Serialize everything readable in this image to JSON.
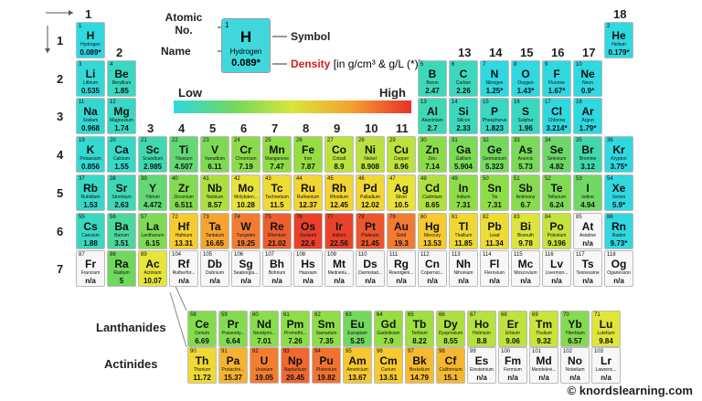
{
  "header": {
    "group_labels": [
      1,
      2,
      3,
      4,
      5,
      6,
      7,
      8,
      9,
      10,
      11,
      12,
      13,
      14,
      15,
      16,
      17,
      18
    ],
    "period_labels": [
      1,
      2,
      3,
      4,
      5,
      6,
      7
    ]
  },
  "legend": {
    "atomic_no": "Atomic No.",
    "name": "Name",
    "symbol": "Symbol",
    "density": "Density",
    "density_units": "[in g/cm³ & g/L (*)]",
    "low": "Low",
    "high": "High",
    "sample": {
      "number": 1,
      "symbol": "H",
      "name": "Hydrogen",
      "density": "0.089*"
    }
  },
  "series_labels": {
    "lanthanides": "Lanthanides",
    "actinides": "Actinides"
  },
  "footer": "© knordslearning.com",
  "elements": [
    {
      "number": 1,
      "symbol": "H",
      "name": "Hydrogen",
      "density": "0.089*"
    },
    {
      "number": 2,
      "symbol": "He",
      "name": "Helium",
      "density": "0.179*"
    },
    {
      "number": 3,
      "symbol": "Li",
      "name": "Lithium",
      "density": "0.535"
    },
    {
      "number": 4,
      "symbol": "Be",
      "name": "Beryllium",
      "density": "1.85"
    },
    {
      "number": 5,
      "symbol": "B",
      "name": "Boron",
      "density": "2.47"
    },
    {
      "number": 6,
      "symbol": "C",
      "name": "Carbon",
      "density": "2.26"
    },
    {
      "number": 7,
      "symbol": "N",
      "name": "Nitrogen",
      "density": "1.25*"
    },
    {
      "number": 8,
      "symbol": "O",
      "name": "Oxygen",
      "density": "1.43*"
    },
    {
      "number": 9,
      "symbol": "F",
      "name": "Fluorine",
      "density": "1.67*"
    },
    {
      "number": 10,
      "symbol": "Ne",
      "name": "Neon",
      "density": "0.9*"
    },
    {
      "number": 11,
      "symbol": "Na",
      "name": "Sodium",
      "density": "0.968"
    },
    {
      "number": 12,
      "symbol": "Mg",
      "name": "Magnesium",
      "density": "1.74"
    },
    {
      "number": 13,
      "symbol": "Al",
      "name": "Aluminium",
      "density": "2.7"
    },
    {
      "number": 14,
      "symbol": "Si",
      "name": "Silicon",
      "density": "2.33"
    },
    {
      "number": 15,
      "symbol": "P",
      "name": "Phosphorus",
      "density": "1.823"
    },
    {
      "number": 16,
      "symbol": "S",
      "name": "Sulphur",
      "density": "1.96"
    },
    {
      "number": 17,
      "symbol": "Cl",
      "name": "Chlorine",
      "density": "3.214*"
    },
    {
      "number": 18,
      "symbol": "Ar",
      "name": "Argon",
      "density": "1.79*"
    },
    {
      "number": 19,
      "symbol": "K",
      "name": "Potassium",
      "density": "0.856"
    },
    {
      "number": 20,
      "symbol": "Ca",
      "name": "Calcium",
      "density": "1.55"
    },
    {
      "number": 21,
      "symbol": "Sc",
      "name": "Scandium",
      "density": "2.985"
    },
    {
      "number": 22,
      "symbol": "Ti",
      "name": "Titanium",
      "density": "4.507"
    },
    {
      "number": 23,
      "symbol": "V",
      "name": "Vanadium",
      "density": "6.11"
    },
    {
      "number": 24,
      "symbol": "Cr",
      "name": "Chromium",
      "density": "7.19"
    },
    {
      "number": 25,
      "symbol": "Mn",
      "name": "Manganese",
      "density": "7.47"
    },
    {
      "number": 26,
      "symbol": "Fe",
      "name": "Iron",
      "density": "7.87"
    },
    {
      "number": 27,
      "symbol": "Co",
      "name": "Cobalt",
      "density": "8.9"
    },
    {
      "number": 28,
      "symbol": "Ni",
      "name": "Nickel",
      "density": "8.908"
    },
    {
      "number": 29,
      "symbol": "Cu",
      "name": "Copper",
      "density": "8.96"
    },
    {
      "number": 30,
      "symbol": "Zn",
      "name": "Zinc",
      "density": "7.14"
    },
    {
      "number": 31,
      "symbol": "Ga",
      "name": "Gallium",
      "density": "5.904"
    },
    {
      "number": 32,
      "symbol": "Ge",
      "name": "Germanium",
      "density": "5.323"
    },
    {
      "number": 33,
      "symbol": "As",
      "name": "Arsenic",
      "density": "5.73"
    },
    {
      "number": 34,
      "symbol": "Se",
      "name": "Selenium",
      "density": "4.82"
    },
    {
      "number": 35,
      "symbol": "Br",
      "name": "Bromine",
      "density": "3.12"
    },
    {
      "number": 36,
      "symbol": "Kr",
      "name": "Krypton",
      "density": "3.75*"
    },
    {
      "number": 37,
      "symbol": "Rb",
      "name": "Rubidium",
      "density": "1.53"
    },
    {
      "number": 38,
      "symbol": "Sr",
      "name": "Strontium",
      "density": "2.63"
    },
    {
      "number": 39,
      "symbol": "Y",
      "name": "Yttrium",
      "density": "4.472"
    },
    {
      "number": 40,
      "symbol": "Zr",
      "name": "Zirconium",
      "density": "6.511"
    },
    {
      "number": 41,
      "symbol": "Nb",
      "name": "Niobium",
      "density": "8.57"
    },
    {
      "number": 42,
      "symbol": "Mo",
      "name": "Molybden...",
      "density": "10.28"
    },
    {
      "number": 43,
      "symbol": "Tc",
      "name": "Technetium",
      "density": "11.5"
    },
    {
      "number": 44,
      "symbol": "Ru",
      "name": "Ruthenium",
      "density": "12.37"
    },
    {
      "number": 45,
      "symbol": "Rh",
      "name": "Rhodium",
      "density": "12.45"
    },
    {
      "number": 46,
      "symbol": "Pd",
      "name": "Palladium",
      "density": "12.02"
    },
    {
      "number": 47,
      "symbol": "Ag",
      "name": "Silver",
      "density": "10.5"
    },
    {
      "number": 48,
      "symbol": "Cd",
      "name": "Cadmium",
      "density": "8.65"
    },
    {
      "number": 49,
      "symbol": "In",
      "name": "Indium",
      "density": "7.31"
    },
    {
      "number": 50,
      "symbol": "Sn",
      "name": "Tin",
      "density": "7.31"
    },
    {
      "number": 51,
      "symbol": "Sb",
      "name": "Antimony",
      "density": "6.7"
    },
    {
      "number": 52,
      "symbol": "Te",
      "name": "Tellurium",
      "density": "6.24"
    },
    {
      "number": 53,
      "symbol": "I",
      "name": "Iodine",
      "density": "4.94"
    },
    {
      "number": 54,
      "symbol": "Xe",
      "name": "Xenon",
      "density": "5.9*"
    },
    {
      "number": 55,
      "symbol": "Cs",
      "name": "Caesium",
      "density": "1.88"
    },
    {
      "number": 56,
      "symbol": "Ba",
      "name": "Barium",
      "density": "3.51"
    },
    {
      "number": 57,
      "symbol": "La",
      "name": "Lanthanum",
      "density": "6.15"
    },
    {
      "number": 58,
      "symbol": "Ce",
      "name": "Cerium",
      "density": "6.69"
    },
    {
      "number": 59,
      "symbol": "Pr",
      "name": "Praseody...",
      "density": "6.64"
    },
    {
      "number": 60,
      "symbol": "Nd",
      "name": "Neodymi...",
      "density": "7.01"
    },
    {
      "number": 61,
      "symbol": "Pm",
      "name": "Promethi...",
      "density": "7.26"
    },
    {
      "number": 62,
      "symbol": "Sm",
      "name": "Samarium",
      "density": "7.35"
    },
    {
      "number": 63,
      "symbol": "Eu",
      "name": "Europium",
      "density": "5.25"
    },
    {
      "number": 64,
      "symbol": "Gd",
      "name": "Gadolinium",
      "density": "7.9"
    },
    {
      "number": 65,
      "symbol": "Tb",
      "name": "Terbium",
      "density": "8.22"
    },
    {
      "number": 66,
      "symbol": "Dy",
      "name": "Dysprosium",
      "density": "8.55"
    },
    {
      "number": 67,
      "symbol": "Ho",
      "name": "Holmium",
      "density": "8.8"
    },
    {
      "number": 68,
      "symbol": "Er",
      "name": "Erbium",
      "density": "9.06"
    },
    {
      "number": 69,
      "symbol": "Tm",
      "name": "Thulium",
      "density": "9.32"
    },
    {
      "number": 70,
      "symbol": "Yb",
      "name": "Ytterbium",
      "density": "6.57"
    },
    {
      "number": 71,
      "symbol": "Lu",
      "name": "Lutetium",
      "density": "9.84"
    },
    {
      "number": 72,
      "symbol": "Hf",
      "name": "Hafnium",
      "density": "13.31"
    },
    {
      "number": 73,
      "symbol": "Ta",
      "name": "Tantalum",
      "density": "16.65"
    },
    {
      "number": 74,
      "symbol": "W",
      "name": "Tungsten",
      "density": "19.25"
    },
    {
      "number": 75,
      "symbol": "Re",
      "name": "Rhenium",
      "density": "21.02"
    },
    {
      "number": 76,
      "symbol": "Os",
      "name": "Osmium",
      "density": "22.6"
    },
    {
      "number": 77,
      "symbol": "Ir",
      "name": "Iridium",
      "density": "22.56"
    },
    {
      "number": 78,
      "symbol": "Pt",
      "name": "Platinum",
      "density": "21.45"
    },
    {
      "number": 79,
      "symbol": "Au",
      "name": "Gold",
      "density": "19.3"
    },
    {
      "number": 80,
      "symbol": "Hg",
      "name": "Mercury",
      "density": "13.53"
    },
    {
      "number": 81,
      "symbol": "Tl",
      "name": "Thallium",
      "density": "11.85"
    },
    {
      "number": 82,
      "symbol": "Pb",
      "name": "Lead",
      "density": "11.34"
    },
    {
      "number": 83,
      "symbol": "Bi",
      "name": "Bismuth",
      "density": "9.78"
    },
    {
      "number": 84,
      "symbol": "Po",
      "name": "Polonium",
      "density": "9.196"
    },
    {
      "number": 85,
      "symbol": "At",
      "name": "Astatine",
      "density": "n/a"
    },
    {
      "number": 86,
      "symbol": "Rn",
      "name": "Radon",
      "density": "9.73*"
    },
    {
      "number": 87,
      "symbol": "Fr",
      "name": "Francium",
      "density": "n/a"
    },
    {
      "number": 88,
      "symbol": "Ra",
      "name": "Radium",
      "density": "5"
    },
    {
      "number": 89,
      "symbol": "Ac",
      "name": "Actinium",
      "density": "10.07"
    },
    {
      "number": 90,
      "symbol": "Th",
      "name": "Thorium",
      "density": "11.72"
    },
    {
      "number": 91,
      "symbol": "Pa",
      "name": "Protactini...",
      "density": "15.37"
    },
    {
      "number": 92,
      "symbol": "U",
      "name": "Uranium",
      "density": "19.05"
    },
    {
      "number": 93,
      "symbol": "Np",
      "name": "Neptunium",
      "density": "20.45"
    },
    {
      "number": 94,
      "symbol": "Pu",
      "name": "Plutonium",
      "density": "19.82"
    },
    {
      "number": 95,
      "symbol": "Am",
      "name": "Americium",
      "density": "13.67"
    },
    {
      "number": 96,
      "symbol": "Cm",
      "name": "Curium",
      "density": "13.51"
    },
    {
      "number": 97,
      "symbol": "Bk",
      "name": "Berkelium",
      "density": "14.79"
    },
    {
      "number": 98,
      "symbol": "Cf",
      "name": "Californium",
      "density": "15.1"
    },
    {
      "number": 99,
      "symbol": "Es",
      "name": "Einsteinium",
      "density": "n/a"
    },
    {
      "number": 100,
      "symbol": "Fm",
      "name": "Fermium",
      "density": "n/a"
    },
    {
      "number": 101,
      "symbol": "Md",
      "name": "Mendelevi...",
      "density": "n/a"
    },
    {
      "number": 102,
      "symbol": "No",
      "name": "Nobelium",
      "density": "n/a"
    },
    {
      "number": 103,
      "symbol": "Lr",
      "name": "Lawrenc...",
      "density": "n/a"
    },
    {
      "number": 104,
      "symbol": "Rf",
      "name": "Rutherfor...",
      "density": "n/a"
    },
    {
      "number": 105,
      "symbol": "Db",
      "name": "Dubnium",
      "density": "n/a"
    },
    {
      "number": 106,
      "symbol": "Sg",
      "name": "Seaborgiu...",
      "density": "n/a"
    },
    {
      "number": 107,
      "symbol": "Bh",
      "name": "Bohrium",
      "density": "n/a"
    },
    {
      "number": 108,
      "symbol": "Hs",
      "name": "Hassium",
      "density": "n/a"
    },
    {
      "number": 109,
      "symbol": "Mt",
      "name": "Meitneriu...",
      "density": "n/a"
    },
    {
      "number": 110,
      "symbol": "Ds",
      "name": "Darmstad...",
      "density": "n/a"
    },
    {
      "number": 111,
      "symbol": "Rg",
      "name": "Roentgeni...",
      "density": "n/a"
    },
    {
      "number": 112,
      "symbol": "Cn",
      "name": "Copernici...",
      "density": "n/a"
    },
    {
      "number": 113,
      "symbol": "Nh",
      "name": "Nihonium",
      "density": "n/a"
    },
    {
      "number": 114,
      "symbol": "Fl",
      "name": "Flerovium",
      "density": "n/a"
    },
    {
      "number": 115,
      "symbol": "Mc",
      "name": "Moscovium",
      "density": "n/a"
    },
    {
      "number": 116,
      "symbol": "Lv",
      "name": "Livermori...",
      "density": "n/a"
    },
    {
      "number": 117,
      "symbol": "Ts",
      "name": "Tennessine",
      "density": "n/a"
    },
    {
      "number": 118,
      "symbol": "Og",
      "name": "Oganesson",
      "density": "n/a"
    }
  ]
}
